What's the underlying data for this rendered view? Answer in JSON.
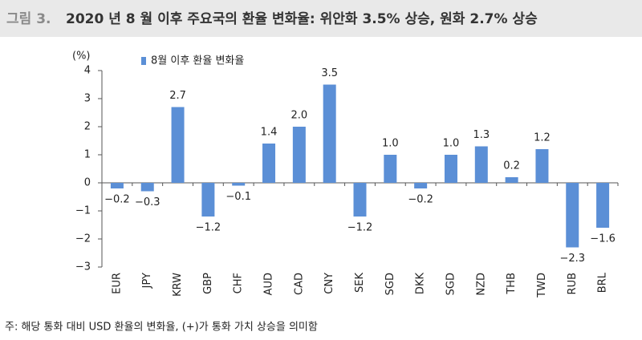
{
  "chart_data": {
    "type": "bar",
    "figure_label": "그림 3.",
    "title": "2020 년 8 월 이후 주요국의 환율 변화율: 위안화 3.5% 상승, 원화 2.7% 상승",
    "y_unit": "(%)",
    "footnote": "주: 해당 통화 대비 USD 환율의 변화율, (+)가 통화 가치 상승을 의미함",
    "categories": [
      "EUR",
      "JPY",
      "KRW",
      "GBP",
      "CHF",
      "AUD",
      "CAD",
      "CNY",
      "SEK",
      "SGD",
      "DKK",
      "SGD",
      "NZD",
      "THB",
      "TWD",
      "RUB",
      "BRL"
    ],
    "series": [
      {
        "name": "8월 이후 환율 변화율",
        "color": "#5b8fd6",
        "values": [
          -0.2,
          -0.3,
          2.7,
          -1.2,
          -0.1,
          1.4,
          2.0,
          3.5,
          -1.2,
          1.0,
          -0.2,
          1.0,
          1.3,
          0.2,
          1.2,
          -2.3,
          -1.6
        ],
        "value_labels": [
          "−0.2",
          "−0.3",
          "2.7",
          "−1.2",
          "−0.1",
          "1.4",
          "2.0",
          "3.5",
          "−1.2",
          "1.0",
          "−0.2",
          "1.0",
          "1.3",
          "0.2",
          "1.2",
          "−2.3",
          "−1.6"
        ]
      }
    ],
    "ylim": [
      -3,
      4
    ],
    "yticks": [
      {
        "value": -3,
        "label": "−3"
      },
      {
        "value": -2,
        "label": "−2"
      },
      {
        "value": -1,
        "label": "−1"
      },
      0,
      1,
      2,
      3,
      4
    ],
    "grid": false
  }
}
